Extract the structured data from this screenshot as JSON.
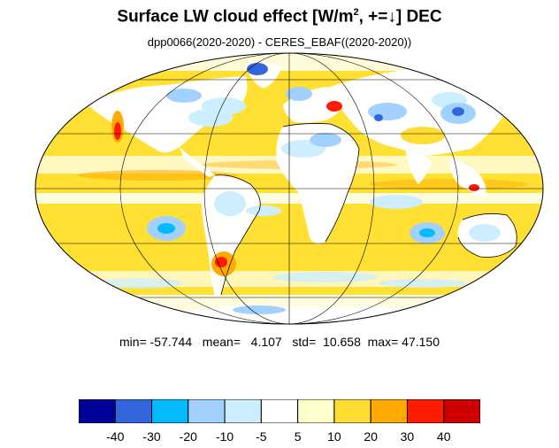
{
  "title": {
    "main_before_sup": "Surface LW cloud effect [W/m",
    "sup": "2",
    "main_after_sup": ", +=↓]  DEC"
  },
  "subtitle": "dpp0066(2020-2020) - CERES_EBAF((2020-2020))",
  "stats": {
    "min_label": "min=",
    "min": "-57.744",
    "mean_label": "mean=",
    "mean": "4.107",
    "std_label": "std=",
    "std": "10.658",
    "max_label": "max=",
    "max": "47.150"
  },
  "colorbar": {
    "colors": [
      "#000099",
      "#3366dd",
      "#00bbff",
      "#a3d1ff",
      "#cceeff",
      "#ffffff",
      "#ffffcc",
      "#ffdd33",
      "#ffaa00",
      "#ff1a00",
      "#cc0000"
    ],
    "labels": [
      "-40",
      "-30",
      "-20",
      "-10",
      "-5",
      "5",
      "10",
      "20",
      "30",
      "40"
    ]
  },
  "map": {
    "projection": "mollweide",
    "land_color": "#ffffff",
    "background_color": "#ffe033",
    "gridline_color": "#000000",
    "coastline_color": "#000000"
  }
}
